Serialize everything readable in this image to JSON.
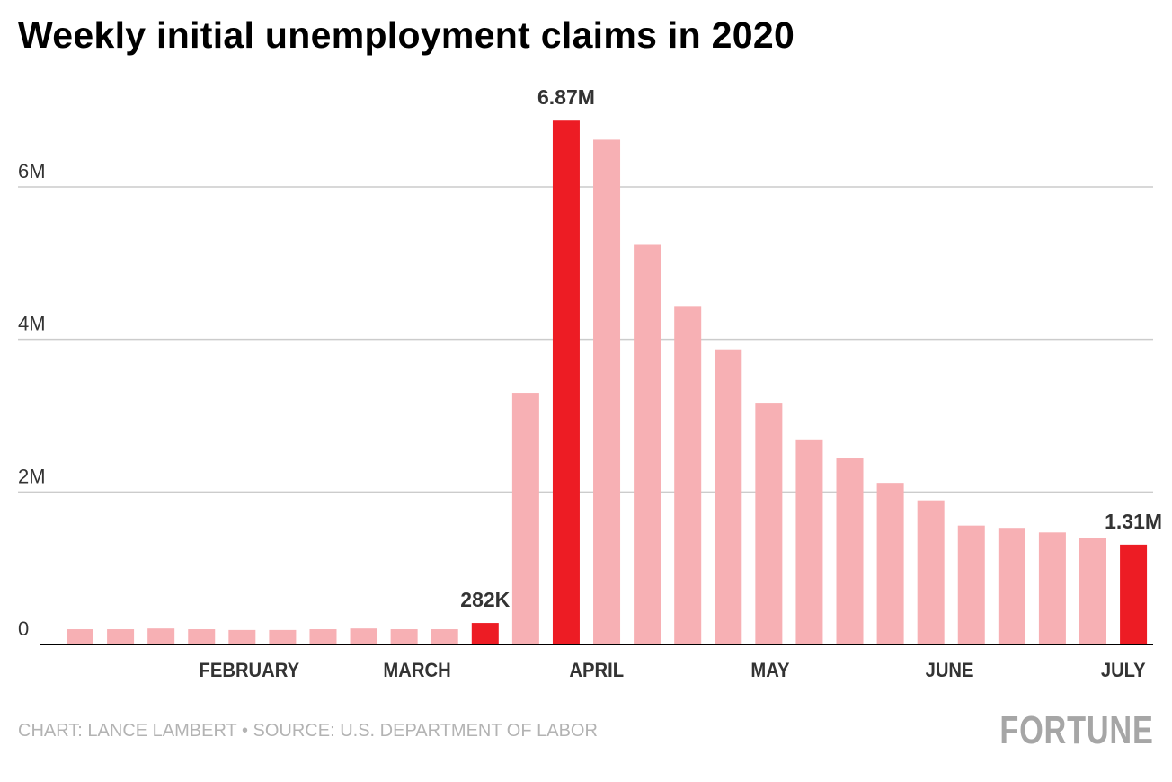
{
  "chart_data": {
    "type": "bar",
    "title": "Weekly initial unemployment claims in 2020",
    "x": [
      "2020-01-04",
      "2020-01-11",
      "2020-01-18",
      "2020-01-25",
      "2020-02-01",
      "2020-02-08",
      "2020-02-15",
      "2020-02-22",
      "2020-02-29",
      "2020-03-07",
      "2020-03-14",
      "2020-03-21",
      "2020-03-28",
      "2020-04-04",
      "2020-04-11",
      "2020-04-18",
      "2020-04-25",
      "2020-05-02",
      "2020-05-09",
      "2020-05-16",
      "2020-05-23",
      "2020-05-30",
      "2020-06-06",
      "2020-06-13",
      "2020-06-20",
      "2020-06-27",
      "2020-07-04"
    ],
    "values": [
      0.2,
      0.2,
      0.21,
      0.2,
      0.19,
      0.19,
      0.2,
      0.21,
      0.2,
      0.2,
      0.282,
      3.3,
      6.87,
      6.62,
      5.24,
      4.44,
      3.87,
      3.17,
      2.69,
      2.44,
      2.12,
      1.89,
      1.56,
      1.53,
      1.47,
      1.4,
      1.31
    ],
    "unit": "millions",
    "highlighted": [
      10,
      12,
      26
    ],
    "data_labels": [
      {
        "index": 10,
        "text": "282K"
      },
      {
        "index": 12,
        "text": "6.87M"
      },
      {
        "index": 26,
        "text": "1.31M"
      }
    ],
    "ylim": [
      0,
      6.87
    ],
    "yticks": [
      {
        "value": 0,
        "label": "0"
      },
      {
        "value": 2,
        "label": "2M"
      },
      {
        "value": 4,
        "label": "4M"
      },
      {
        "value": 6,
        "label": "6M"
      }
    ],
    "month_ticks": [
      {
        "date": "2020-02-01",
        "label": "FEBRUARY"
      },
      {
        "date": "2020-03-01",
        "label": "MARCH"
      },
      {
        "date": "2020-04-01",
        "label": "APRIL"
      },
      {
        "date": "2020-05-01",
        "label": "MAY"
      },
      {
        "date": "2020-06-01",
        "label": "JUNE"
      },
      {
        "date": "2020-07-01",
        "label": "JULY"
      }
    ],
    "grid": true,
    "colors": {
      "highlight": "#ED1C24",
      "default": "#F7B0B4",
      "grid": "#cccccc",
      "axis": "#000000"
    }
  },
  "footer": {
    "credit": "CHART: LANCE LAMBERT • SOURCE: U.S. DEPARTMENT OF LABOR",
    "logo": "FORTUNE"
  }
}
